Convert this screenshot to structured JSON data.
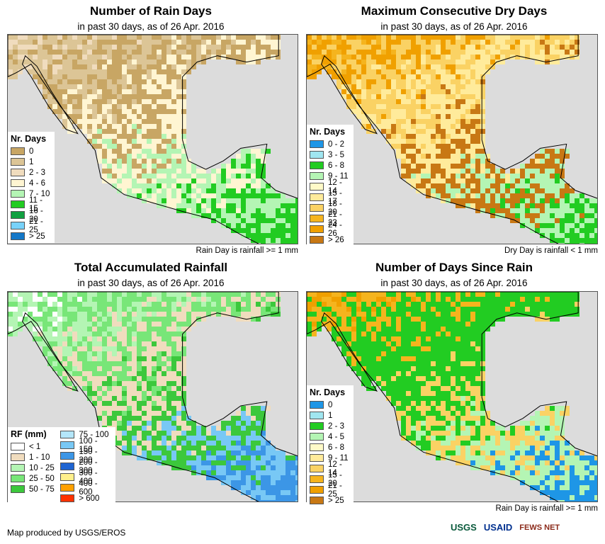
{
  "panels": [
    {
      "title": "Number of Rain Days",
      "subtitle": "in past 30 days, as of 26 Apr. 2016",
      "footnote": "Rain Day is rainfall >= 1 mm",
      "legend_title": "Nr. Days",
      "legend": [
        {
          "label": "0",
          "color": "#c8a664"
        },
        {
          "label": "1",
          "color": "#dcc596"
        },
        {
          "label": "2 - 3",
          "color": "#f0dcbe"
        },
        {
          "label": "4 - 6",
          "color": "#fff5d2"
        },
        {
          "label": "7 - 10",
          "color": "#b4f5b4"
        },
        {
          "label": "11 - 15",
          "color": "#22cc22"
        },
        {
          "label": "16 - 20",
          "color": "#10a040"
        },
        {
          "label": "21 - 25",
          "color": "#78d2fa"
        },
        {
          "label": "> 25",
          "color": "#1478c8"
        }
      ],
      "map_palette": [
        "#f0dcbe",
        "#dcc596",
        "#c8a664",
        "#fff5d2",
        "#b4f5b4",
        "#22cc22"
      ]
    },
    {
      "title": "Maximum Consecutive Dry Days",
      "subtitle": "in past 30 days, as of 26 Apr. 2016",
      "footnote": "Dry Day is rainfall < 1 mm",
      "legend_title": "Nr. Days",
      "legend": [
        {
          "label": "0 - 2",
          "color": "#1e96e6"
        },
        {
          "label": "3 - 5",
          "color": "#a0e6f0"
        },
        {
          "label": "6 - 8",
          "color": "#22cc22"
        },
        {
          "label": "9 - 11",
          "color": "#b4f5b4"
        },
        {
          "label": "12 - 14",
          "color": "#fffac8"
        },
        {
          "label": "15 - 17",
          "color": "#ffeb9b"
        },
        {
          "label": "18 - 20",
          "color": "#fad264"
        },
        {
          "label": "21 - 23",
          "color": "#f5b41e"
        },
        {
          "label": "24 - 26",
          "color": "#f0a000"
        },
        {
          "label": "> 26",
          "color": "#c87814"
        }
      ],
      "map_palette": [
        "#f5b41e",
        "#f0a000",
        "#fad264",
        "#ffeb9b",
        "#c87814",
        "#b4f5b4",
        "#22cc22"
      ]
    },
    {
      "title": "Total Accumulated Rainfall",
      "subtitle": "in past 30 days, as of 26 Apr. 2016",
      "footnote": "",
      "legend_title": "RF (mm)",
      "legend": [
        {
          "label": "< 1",
          "color": "#ffffff"
        },
        {
          "label": "1 - 10",
          "color": "#f0dcbe"
        },
        {
          "label": "10 - 25",
          "color": "#b4f5b4"
        },
        {
          "label": "25 - 50",
          "color": "#78e678"
        },
        {
          "label": "50 - 75",
          "color": "#3cc83c"
        }
      ],
      "legend_right": [
        {
          "label": "75 - 100",
          "color": "#b4e6fa"
        },
        {
          "label": "100 - 150",
          "color": "#78c8f5"
        },
        {
          "label": "150 - 200",
          "color": "#3c96e6"
        },
        {
          "label": "200 - 300",
          "color": "#1e64d2"
        },
        {
          "label": "300 - 400",
          "color": "#fff08c"
        },
        {
          "label": "400 - 600",
          "color": "#ffa000"
        },
        {
          "label": "> 600",
          "color": "#ff3200"
        }
      ],
      "map_palette": [
        "#ffffff",
        "#b4f5b4",
        "#78e678",
        "#f0dcbe",
        "#3cc83c",
        "#78c8f5",
        "#3c96e6"
      ]
    },
    {
      "title": "Number of Days Since Rain",
      "subtitle": "in past 30 days, as of 26 Apr. 2016",
      "footnote": "Rain Day is rainfall >= 1 mm",
      "legend_title": "Nr. Days",
      "legend": [
        {
          "label": "0",
          "color": "#1e96e6"
        },
        {
          "label": "1",
          "color": "#a0e6f0"
        },
        {
          "label": "2 - 3",
          "color": "#22cc22"
        },
        {
          "label": "4 - 5",
          "color": "#b4f5b4"
        },
        {
          "label": "6 - 8",
          "color": "#fffac8"
        },
        {
          "label": "9 - 11",
          "color": "#ffeb9b"
        },
        {
          "label": "12 - 14",
          "color": "#fad264"
        },
        {
          "label": "15 - 20",
          "color": "#f5b41e"
        },
        {
          "label": "21 - 25",
          "color": "#f0a000"
        },
        {
          "label": "> 25",
          "color": "#c87814"
        }
      ],
      "map_palette": [
        "#f0a000",
        "#f5b41e",
        "#22cc22",
        "#22cc22",
        "#fad264",
        "#b4f5b4",
        "#1e96e6"
      ]
    }
  ],
  "credit": "Map produced by USGS/EROS",
  "logos": {
    "usgs": "USGS",
    "usaid": "USAID",
    "fewsnet": "FEWS NET"
  },
  "colors": {
    "ocean": "#dcdcdc",
    "border": "#000000"
  }
}
